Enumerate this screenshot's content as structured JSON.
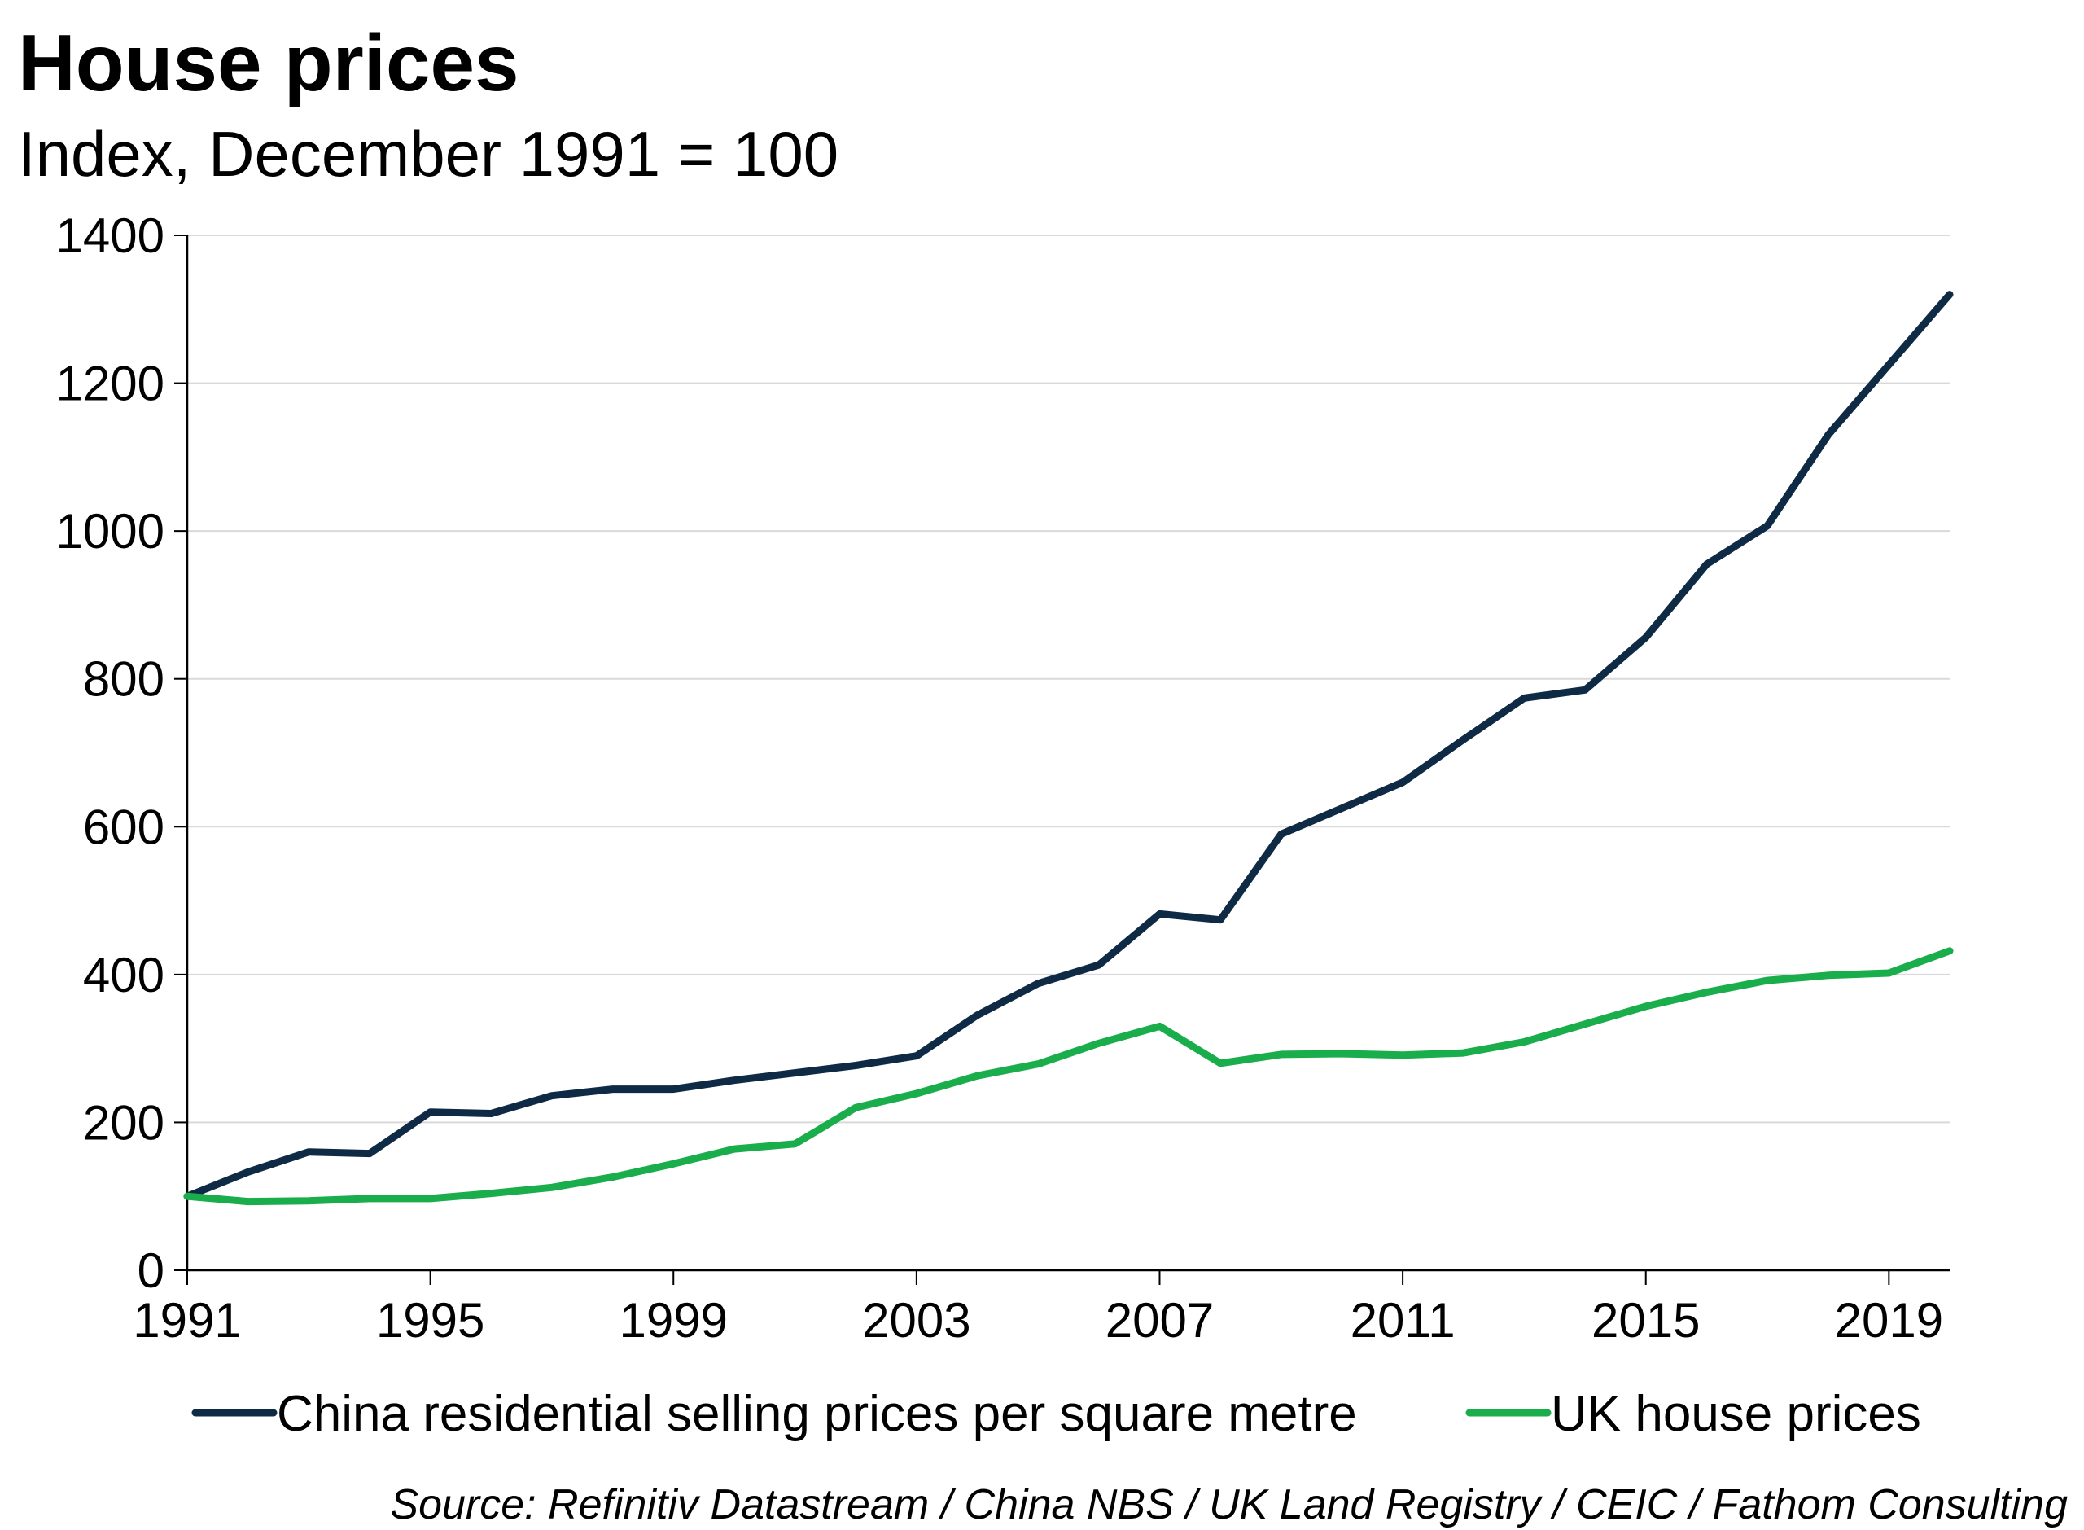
{
  "header": {
    "title": "House prices",
    "subtitle": "Index, December 1991 = 100"
  },
  "footer": {
    "source": "Source: Refinitiv Datastream / China NBS / UK Land Registry / CEIC / Fathom Consulting"
  },
  "chart_data": {
    "type": "line",
    "title": "House prices",
    "subtitle": "Index, December 1991 = 100",
    "xlabel": "",
    "ylabel": "",
    "xlim": [
      1991,
      2020
    ],
    "ylim": [
      0,
      1400
    ],
    "x_ticks": [
      1991,
      1995,
      1999,
      2003,
      2007,
      2011,
      2015,
      2019
    ],
    "y_ticks": [
      0,
      200,
      400,
      600,
      800,
      1000,
      1200,
      1400
    ],
    "grid": true,
    "legend_position": "bottom",
    "series": [
      {
        "name": "China residential selling prices per square metre",
        "color": "#0f2a45",
        "x": [
          1991,
          1992,
          1993,
          1994,
          1995,
          1996,
          1997,
          1998,
          1999,
          2000,
          2001,
          2002,
          2003,
          2004,
          2005,
          2006,
          2007,
          2008,
          2009,
          2010,
          2011,
          2012,
          2013,
          2014,
          2015,
          2016,
          2017,
          2018,
          2019,
          2020
        ],
        "values": [
          100,
          133,
          160,
          158,
          214,
          212,
          236,
          245,
          245,
          257,
          267,
          277,
          290,
          345,
          388,
          413,
          482,
          474,
          590,
          625,
          660,
          718,
          774,
          785,
          856,
          955,
          1007,
          1130,
          1225,
          1320
        ]
      },
      {
        "name": "UK house prices",
        "color": "#1aad4b",
        "x": [
          1991,
          1992,
          1993,
          1994,
          1995,
          1996,
          1997,
          1998,
          1999,
          2000,
          2001,
          2002,
          2003,
          2004,
          2005,
          2006,
          2007,
          2008,
          2009,
          2010,
          2011,
          2012,
          2013,
          2014,
          2015,
          2016,
          2017,
          2018,
          2019,
          2020
        ],
        "values": [
          100,
          93,
          94,
          97,
          97,
          104,
          112,
          126,
          144,
          164,
          171,
          220,
          239,
          263,
          279,
          307,
          330,
          280,
          292,
          293,
          291,
          294,
          309,
          333,
          357,
          376,
          392,
          399,
          402,
          432
        ]
      }
    ]
  }
}
